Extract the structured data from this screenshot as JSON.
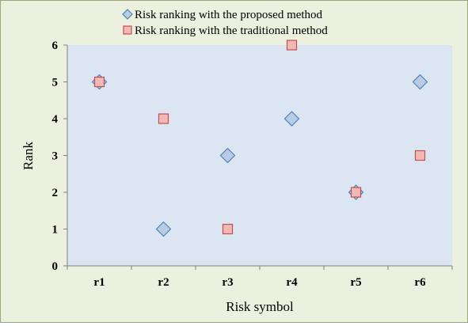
{
  "chart_data": {
    "type": "scatter",
    "categories": [
      "r1",
      "r2",
      "r3",
      "r4",
      "r5",
      "r6"
    ],
    "series": [
      {
        "name": "Risk ranking with the proposed method",
        "marker": "diamond",
        "color": "#b8cce4",
        "stroke": "#4f81bd",
        "values": [
          5,
          1,
          3,
          4,
          2,
          5
        ]
      },
      {
        "name": "Risk ranking with the traditional method",
        "marker": "square",
        "color": "#f2b8b8",
        "stroke": "#c0504d",
        "values": [
          5,
          4,
          1,
          6,
          2,
          3
        ]
      }
    ],
    "xlabel": "Risk symbol",
    "ylabel": "Rank",
    "ylim": [
      0,
      6
    ],
    "yticks": [
      "0",
      "1",
      "2",
      "3",
      "4",
      "5",
      "6"
    ],
    "grid": false,
    "legend_position": "top",
    "plot_background": "#dce6f2"
  }
}
